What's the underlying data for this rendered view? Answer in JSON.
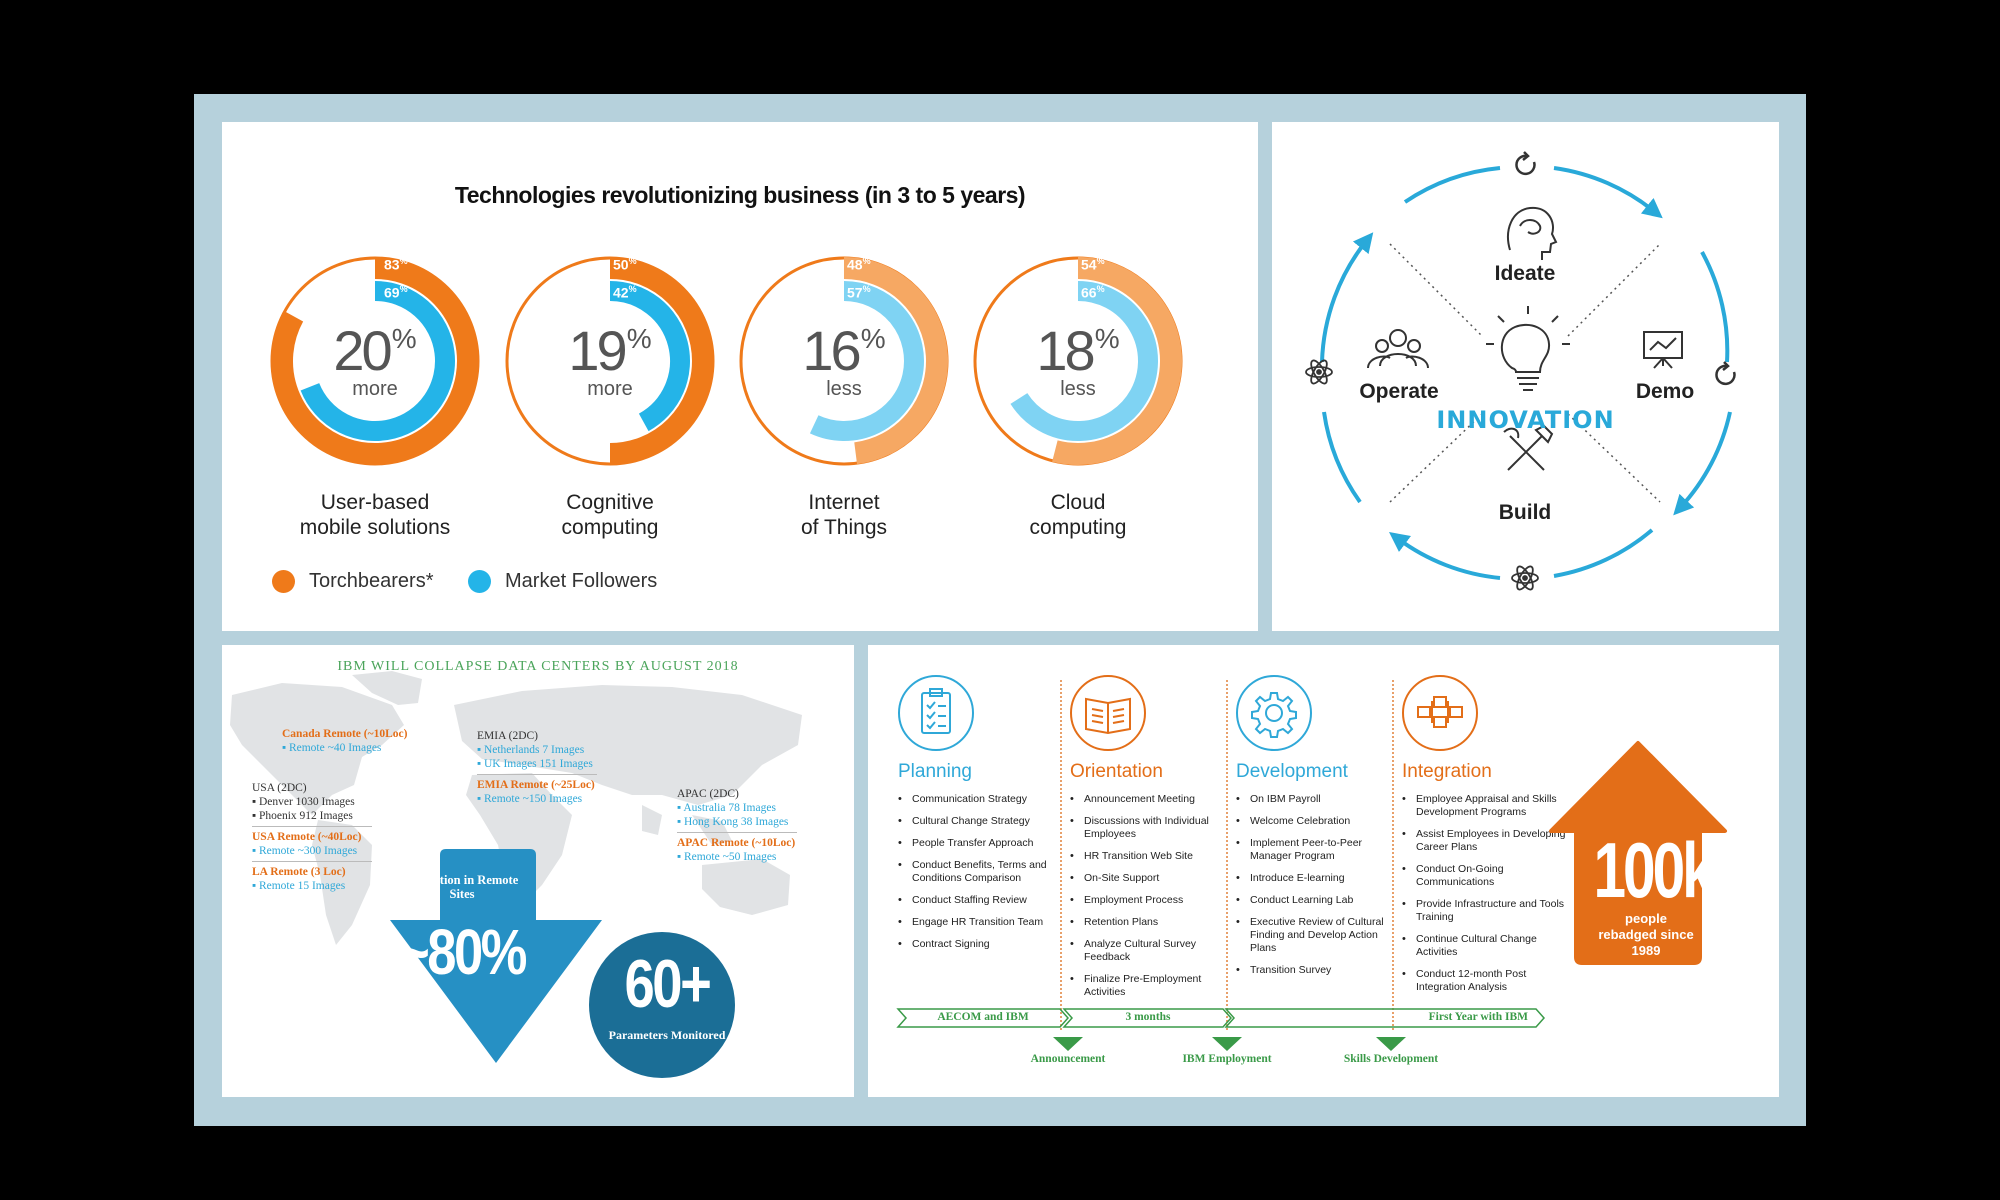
{
  "tech": {
    "title": "Technologies revolutionizing business (in 3 to 5 years)",
    "colors": {
      "torchbearers": "#ef7a1a",
      "followers": "#24b4e8",
      "torch_light": "#f6a863",
      "follow_light": "#7fd3f3"
    },
    "items": [
      {
        "value": "20",
        "pct_sign": "%",
        "word": "more",
        "torch": "83",
        "follow": "69",
        "pct": "%",
        "label1": "User-based",
        "label2": "mobile solutions"
      },
      {
        "value": "19",
        "pct_sign": "%",
        "word": "more",
        "torch": "50",
        "follow": "42",
        "pct": "%",
        "label1": "Cognitive",
        "label2": "computing"
      },
      {
        "value": "16",
        "pct_sign": "%",
        "word": "less",
        "torch": "48",
        "follow": "57",
        "pct": "%",
        "label1": "Internet",
        "label2": "of Things"
      },
      {
        "value": "18",
        "pct_sign": "%",
        "word": "less",
        "torch": "54",
        "follow": "66",
        "pct": "%",
        "label1": "Cloud",
        "label2": "computing"
      }
    ],
    "legend": {
      "torchbearers": "Torchbearers*",
      "followers": "Market Followers"
    }
  },
  "innovation": {
    "center": "INNOVATION",
    "nodes": {
      "top": "Ideate",
      "left": "Operate",
      "right": "Demo",
      "bottom": "Build"
    },
    "icons": [
      "refresh-icon",
      "atom-icon",
      "head-icon",
      "people-icon",
      "chart-board-icon",
      "lightbulb-icon",
      "tools-icon"
    ],
    "color": "#29a9d9"
  },
  "datacenters": {
    "title": "IBM WILL COLLAPSE DATA CENTERS BY AUGUST 2018",
    "canada": {
      "head": "Canada Remote (~10Loc)",
      "items": [
        "Remote ~40 Images"
      ]
    },
    "usa": {
      "head": "USA (2DC)",
      "items": [
        "Denver 1030 Images",
        "Phoenix 912 Images"
      ]
    },
    "usa_remote": {
      "head": "USA Remote (~40Loc)",
      "items": [
        "Remote ~300 Images"
      ]
    },
    "la_remote": {
      "head": "LA Remote (3 Loc)",
      "items": [
        "Remote 15 Images"
      ]
    },
    "emia": {
      "head": "EMIA (2DC)",
      "items": [
        "Netherlands 7 Images",
        "UK Images 151 Images"
      ]
    },
    "emia_remote": {
      "head": "EMIA Remote (~25Loc)",
      "items": [
        "Remote ~150 Images"
      ]
    },
    "apac": {
      "head": "APAC (2DC)",
      "items": [
        "Australia 78 Images",
        "Hong Kong 38 Images"
      ]
    },
    "apac_remote": {
      "head": "APAC Remote (~10Loc)",
      "items": [
        "Remote ~50 Images"
      ]
    },
    "reduction_label": "Reduction in Remote Sites",
    "reduction_value": "~80%",
    "params_value": "60+",
    "params_label": "Parameters Monitored"
  },
  "transition": {
    "phases": [
      {
        "title": "Planning",
        "color": "#2fa8d8",
        "icon": "clipboard-icon",
        "items": [
          "Communication Strategy",
          "Cultural Change Strategy",
          "People Transfer Approach",
          "Conduct Benefits, Terms and Conditions Comparison",
          "Conduct Staffing Review",
          "Engage HR Transition Team",
          "Contract Signing"
        ]
      },
      {
        "title": "Orientation",
        "color": "#e36e18",
        "icon": "book-icon",
        "items": [
          "Announcement Meeting",
          "Discussions with Individual Employees",
          "HR Transition Web Site",
          "On-Site Support",
          "Employment Process",
          "Retention Plans",
          "Analyze Cultural Survey Feedback",
          "Finalize Pre-Employment Activities"
        ]
      },
      {
        "title": "Development",
        "color": "#2fa8d8",
        "icon": "gear-icon",
        "items": [
          "On IBM Payroll",
          "Welcome Celebration",
          "Implement Peer-to-Peer Manager Program",
          "Introduce E-learning",
          "Conduct Learning Lab",
          "Executive Review of Cultural Finding and Develop Action Plans",
          "Transition Survey"
        ]
      },
      {
        "title": "Integration",
        "color": "#e36e18",
        "icon": "flowchart-icon",
        "items": [
          "Employee Appraisal and Skills Development Programs",
          "Assist Employees in Developing Career Plans",
          "Conduct On-Going Communications",
          "Provide Infrastructure and Tools Training",
          "Continue Cultural Change Activities",
          "Conduct 12-month Post Integration Analysis"
        ]
      }
    ],
    "timeline": {
      "seg1": "AECOM and IBM",
      "seg2": "3 months",
      "seg3": "First Year with IBM"
    },
    "milestones": [
      "Announcement",
      "IBM Employment",
      "Skills Development"
    ],
    "rebadged": {
      "value": "100k",
      "label": "people rebadged since 1989",
      "color": "#e36e18"
    }
  }
}
